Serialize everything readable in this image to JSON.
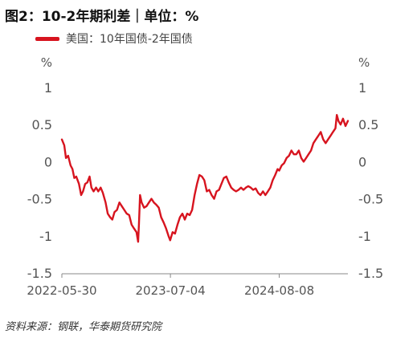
{
  "header": {
    "title": "图2：10-2年期利差｜单位：%"
  },
  "legend": {
    "label": "美国：10年国债-2年国债",
    "color": "#d7141f"
  },
  "footer": {
    "source": "资料来源：钢联，华泰期货研究院"
  },
  "chart_data": {
    "type": "line",
    "title": "图2：10-2年期利差｜单位：%",
    "xlabel": "",
    "ylabel_left": "%",
    "ylabel_right": "%",
    "ylim": [
      -1.5,
      1
    ],
    "yticks": [
      1,
      0.5,
      0,
      -0.5,
      -1,
      -1.5
    ],
    "ytick_labels": [
      "1",
      "0.5",
      "0",
      "-0.5",
      "-1",
      "-1.5"
    ],
    "xlim": [
      "2022-05-30",
      "2025-04-18"
    ],
    "xticks": [
      "2022-05-30",
      "2023-07-04",
      "2024-08-08"
    ],
    "grid": false,
    "legend_position": "top-left",
    "series": [
      {
        "name": "美国：10年国债-2年国债",
        "color": "#d7141f",
        "points": [
          [
            "2022-05-30",
            0.3
          ],
          [
            "2022-06-08",
            0.22
          ],
          [
            "2022-06-14",
            0.05
          ],
          [
            "2022-06-22",
            0.08
          ],
          [
            "2022-07-01",
            -0.05
          ],
          [
            "2022-07-08",
            -0.1
          ],
          [
            "2022-07-15",
            -0.22
          ],
          [
            "2022-07-22",
            -0.2
          ],
          [
            "2022-08-01",
            -0.3
          ],
          [
            "2022-08-09",
            -0.45
          ],
          [
            "2022-08-16",
            -0.4
          ],
          [
            "2022-08-24",
            -0.3
          ],
          [
            "2022-09-01",
            -0.28
          ],
          [
            "2022-09-09",
            -0.2
          ],
          [
            "2022-09-16",
            -0.35
          ],
          [
            "2022-09-24",
            -0.4
          ],
          [
            "2022-10-03",
            -0.35
          ],
          [
            "2022-10-11",
            -0.4
          ],
          [
            "2022-10-20",
            -0.35
          ],
          [
            "2022-10-28",
            -0.42
          ],
          [
            "2022-11-07",
            -0.55
          ],
          [
            "2022-11-15",
            -0.7
          ],
          [
            "2022-11-24",
            -0.75
          ],
          [
            "2022-12-02",
            -0.78
          ],
          [
            "2022-12-10",
            -0.68
          ],
          [
            "2022-12-19",
            -0.65
          ],
          [
            "2022-12-28",
            -0.55
          ],
          [
            "2023-01-06",
            -0.6
          ],
          [
            "2023-01-15",
            -0.65
          ],
          [
            "2023-01-24",
            -0.7
          ],
          [
            "2023-02-02",
            -0.72
          ],
          [
            "2023-02-11",
            -0.85
          ],
          [
            "2023-02-20",
            -0.9
          ],
          [
            "2023-03-01",
            -0.95
          ],
          [
            "2023-03-07",
            -1.08
          ],
          [
            "2023-03-10",
            -0.85
          ],
          [
            "2023-03-14",
            -0.45
          ],
          [
            "2023-03-20",
            -0.55
          ],
          [
            "2023-03-29",
            -0.62
          ],
          [
            "2023-04-07",
            -0.6
          ],
          [
            "2023-04-16",
            -0.55
          ],
          [
            "2023-04-25",
            -0.5
          ],
          [
            "2023-05-04",
            -0.55
          ],
          [
            "2023-05-13",
            -0.58
          ],
          [
            "2023-05-22",
            -0.62
          ],
          [
            "2023-05-31",
            -0.75
          ],
          [
            "2023-06-09",
            -0.82
          ],
          [
            "2023-06-18",
            -0.9
          ],
          [
            "2023-06-27",
            -1.0
          ],
          [
            "2023-07-03",
            -1.06
          ],
          [
            "2023-07-12",
            -0.95
          ],
          [
            "2023-07-21",
            -0.97
          ],
          [
            "2023-07-30",
            -0.85
          ],
          [
            "2023-08-08",
            -0.75
          ],
          [
            "2023-08-17",
            -0.7
          ],
          [
            "2023-08-26",
            -0.78
          ],
          [
            "2023-09-04",
            -0.7
          ],
          [
            "2023-09-13",
            -0.72
          ],
          [
            "2023-09-22",
            -0.65
          ],
          [
            "2023-10-01",
            -0.45
          ],
          [
            "2023-10-10",
            -0.3
          ],
          [
            "2023-10-19",
            -0.18
          ],
          [
            "2023-10-28",
            -0.2
          ],
          [
            "2023-11-06",
            -0.25
          ],
          [
            "2023-11-15",
            -0.4
          ],
          [
            "2023-11-24",
            -0.38
          ],
          [
            "2023-12-03",
            -0.45
          ],
          [
            "2023-12-12",
            -0.5
          ],
          [
            "2023-12-21",
            -0.4
          ],
          [
            "2023-12-30",
            -0.38
          ],
          [
            "2024-01-08",
            -0.3
          ],
          [
            "2024-01-17",
            -0.22
          ],
          [
            "2024-01-26",
            -0.2
          ],
          [
            "2024-02-04",
            -0.28
          ],
          [
            "2024-02-13",
            -0.35
          ],
          [
            "2024-02-22",
            -0.38
          ],
          [
            "2024-03-02",
            -0.4
          ],
          [
            "2024-03-11",
            -0.38
          ],
          [
            "2024-03-20",
            -0.35
          ],
          [
            "2024-03-29",
            -0.38
          ],
          [
            "2024-04-07",
            -0.35
          ],
          [
            "2024-04-16",
            -0.33
          ],
          [
            "2024-04-25",
            -0.35
          ],
          [
            "2024-05-04",
            -0.38
          ],
          [
            "2024-05-13",
            -0.36
          ],
          [
            "2024-05-22",
            -0.42
          ],
          [
            "2024-05-31",
            -0.45
          ],
          [
            "2024-06-09",
            -0.4
          ],
          [
            "2024-06-18",
            -0.45
          ],
          [
            "2024-06-27",
            -0.4
          ],
          [
            "2024-07-06",
            -0.35
          ],
          [
            "2024-07-15",
            -0.25
          ],
          [
            "2024-07-24",
            -0.18
          ],
          [
            "2024-08-02",
            -0.1
          ],
          [
            "2024-08-08",
            -0.12
          ],
          [
            "2024-08-17",
            -0.05
          ],
          [
            "2024-08-26",
            -0.02
          ],
          [
            "2024-09-04",
            0.05
          ],
          [
            "2024-09-13",
            0.08
          ],
          [
            "2024-09-22",
            0.15
          ],
          [
            "2024-10-01",
            0.1
          ],
          [
            "2024-10-10",
            0.1
          ],
          [
            "2024-10-19",
            0.15
          ],
          [
            "2024-10-28",
            0.05
          ],
          [
            "2024-11-06",
            0.0
          ],
          [
            "2024-11-15",
            0.05
          ],
          [
            "2024-11-24",
            0.1
          ],
          [
            "2024-12-03",
            0.15
          ],
          [
            "2024-12-12",
            0.25
          ],
          [
            "2024-12-21",
            0.3
          ],
          [
            "2024-12-30",
            0.35
          ],
          [
            "2025-01-08",
            0.4
          ],
          [
            "2025-01-17",
            0.3
          ],
          [
            "2025-01-26",
            0.25
          ],
          [
            "2025-02-04",
            0.3
          ],
          [
            "2025-02-13",
            0.35
          ],
          [
            "2025-02-22",
            0.4
          ],
          [
            "2025-03-03",
            0.45
          ],
          [
            "2025-03-08",
            0.63
          ],
          [
            "2025-03-14",
            0.55
          ],
          [
            "2025-03-22",
            0.5
          ],
          [
            "2025-03-31",
            0.58
          ],
          [
            "2025-04-09",
            0.48
          ],
          [
            "2025-04-18",
            0.55
          ]
        ]
      }
    ]
  }
}
